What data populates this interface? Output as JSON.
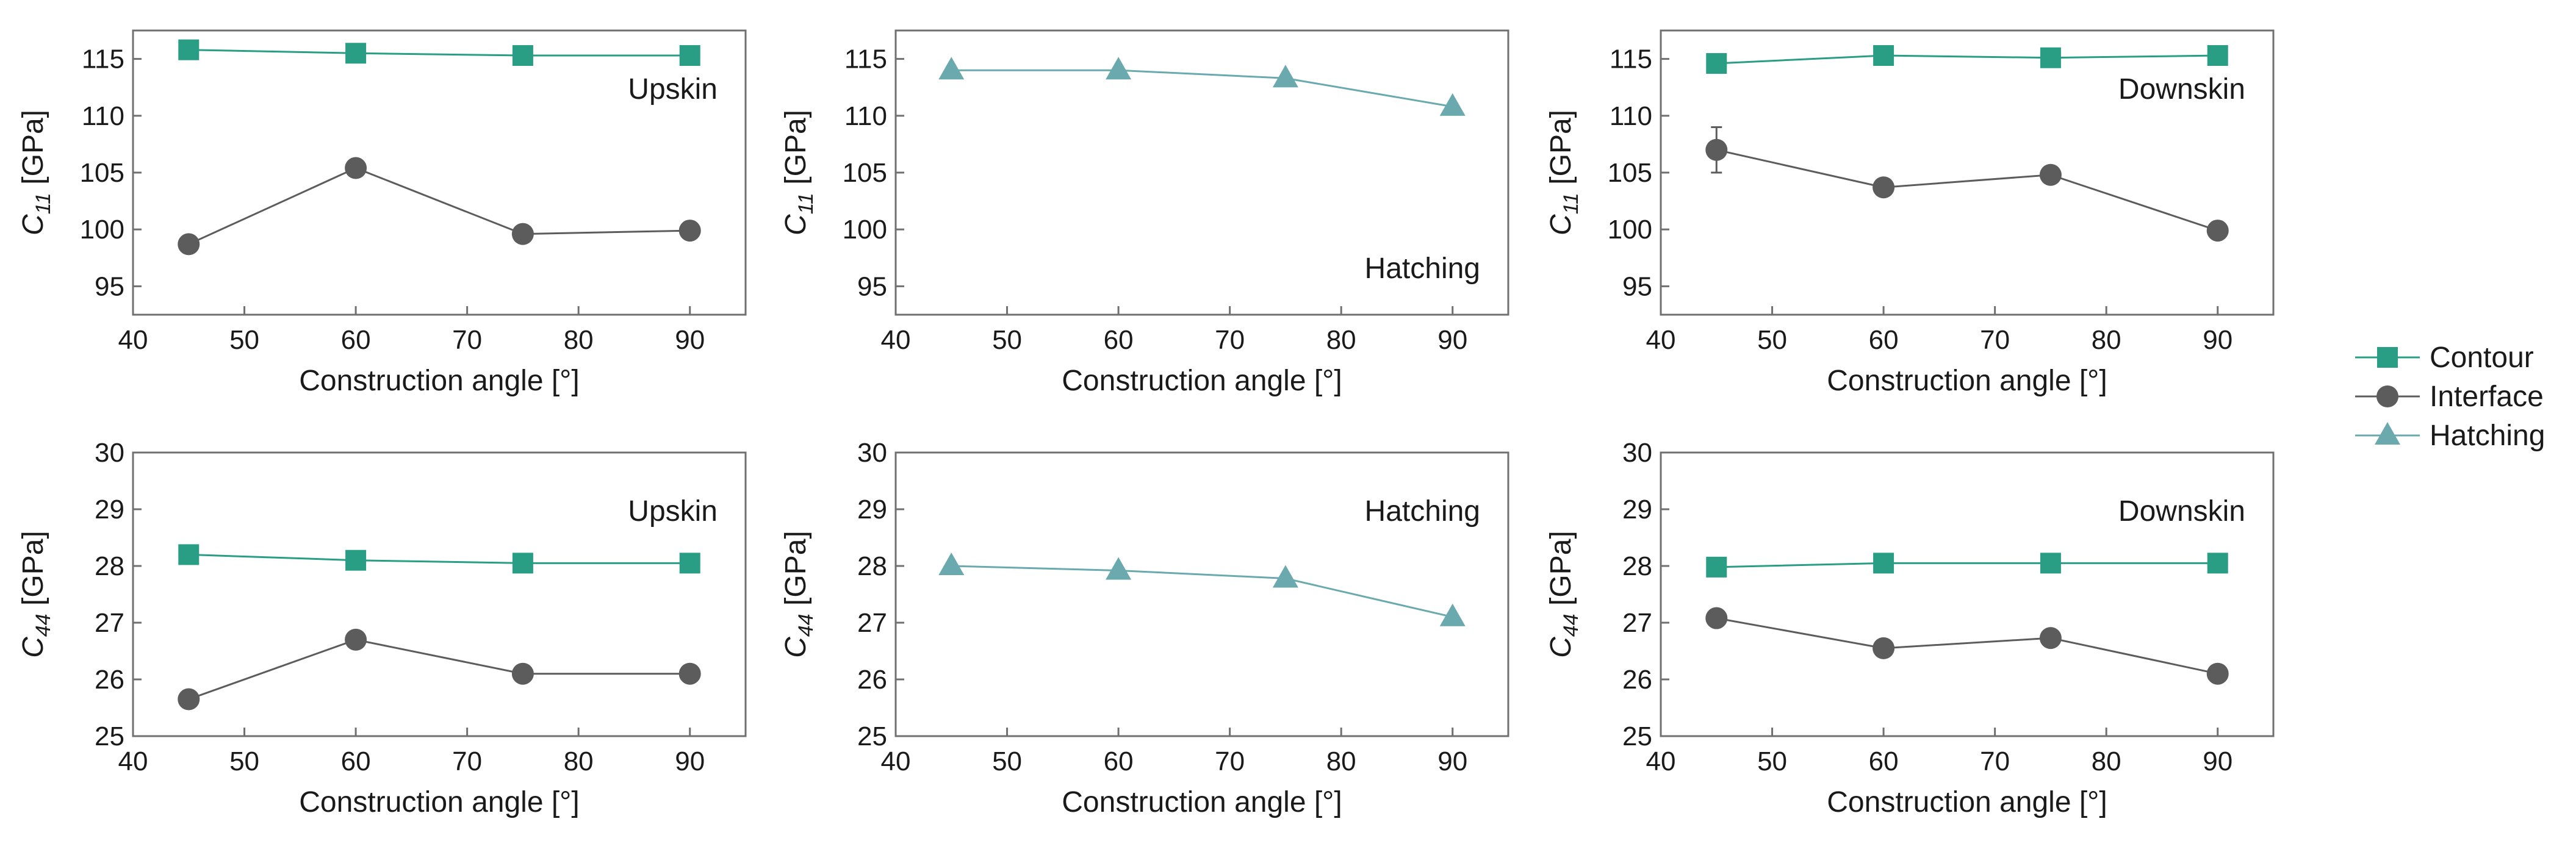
{
  "colors": {
    "contour": "#2a9d85",
    "interface": "#5c5c5c",
    "hatching": "#6aa9ad"
  },
  "legend": {
    "items": [
      {
        "key": "contour",
        "label": "Contour",
        "marker": "square"
      },
      {
        "key": "interface",
        "label": "Interface",
        "marker": "circle"
      },
      {
        "key": "hatching",
        "label": "Hatching",
        "marker": "triangle"
      }
    ]
  },
  "chart_data": [
    {
      "type": "line",
      "panel": "top-left",
      "annotation": "Upskin",
      "annotation_position": "upper-right",
      "xlabel": "Construction angle [°]",
      "ylabel": {
        "base": "C",
        "sub": "11",
        "unit": " [GPa]"
      },
      "xlim": [
        40,
        95
      ],
      "ylim": [
        92.5,
        117.5
      ],
      "xticks": [
        40,
        50,
        60,
        70,
        80,
        90
      ],
      "yticks": [
        95,
        100,
        105,
        110,
        115
      ],
      "x": [
        45,
        60,
        75,
        90
      ],
      "series": [
        {
          "name": "Contour",
          "key": "contour",
          "values": [
            115.8,
            115.5,
            115.3,
            115.3
          ]
        },
        {
          "name": "Interface",
          "key": "interface",
          "values": [
            98.7,
            105.4,
            99.6,
            99.9
          ]
        }
      ]
    },
    {
      "type": "line",
      "panel": "top-middle",
      "annotation": "Hatching",
      "annotation_position": "lower-right",
      "xlabel": "Construction angle [°]",
      "ylabel": {
        "base": "C",
        "sub": "11",
        "unit": " [GPa]"
      },
      "xlim": [
        40,
        95
      ],
      "ylim": [
        92.5,
        117.5
      ],
      "xticks": [
        40,
        50,
        60,
        70,
        80,
        90
      ],
      "yticks": [
        95,
        100,
        105,
        110,
        115
      ],
      "x": [
        45,
        60,
        75,
        90
      ],
      "series": [
        {
          "name": "Hatching",
          "key": "hatching",
          "values": [
            114.0,
            114.0,
            113.3,
            110.8
          ]
        }
      ]
    },
    {
      "type": "line",
      "panel": "top-right",
      "annotation": "Downskin",
      "annotation_position": "upper-right",
      "xlabel": "Construction angle [°]",
      "ylabel": {
        "base": "C",
        "sub": "11",
        "unit": " [GPa]"
      },
      "xlim": [
        40,
        95
      ],
      "ylim": [
        92.5,
        117.5
      ],
      "xticks": [
        40,
        50,
        60,
        70,
        80,
        90
      ],
      "yticks": [
        95,
        100,
        105,
        110,
        115
      ],
      "x": [
        45,
        60,
        75,
        90
      ],
      "series": [
        {
          "name": "Contour",
          "key": "contour",
          "values": [
            114.6,
            115.3,
            115.1,
            115.3
          ]
        },
        {
          "name": "Interface",
          "key": "interface",
          "values": [
            107.0,
            103.7,
            104.8,
            99.9
          ],
          "errors": [
            2.0,
            0,
            0,
            0
          ]
        }
      ]
    },
    {
      "type": "line",
      "panel": "bottom-left",
      "annotation": "Upskin",
      "annotation_position": "upper-right",
      "xlabel": "Construction angle [°]",
      "ylabel": {
        "base": "C",
        "sub": "44",
        "unit": " [GPa]"
      },
      "xlim": [
        40,
        95
      ],
      "ylim": [
        25,
        30
      ],
      "xticks": [
        40,
        50,
        60,
        70,
        80,
        90
      ],
      "yticks": [
        25,
        26,
        27,
        28,
        29,
        30
      ],
      "x": [
        45,
        60,
        75,
        90
      ],
      "series": [
        {
          "name": "Contour",
          "key": "contour",
          "values": [
            28.2,
            28.1,
            28.05,
            28.05
          ]
        },
        {
          "name": "Interface",
          "key": "interface",
          "values": [
            25.65,
            26.7,
            26.1,
            26.1
          ]
        }
      ]
    },
    {
      "type": "line",
      "panel": "bottom-middle",
      "annotation": "Hatching",
      "annotation_position": "upper-right",
      "xlabel": "Construction angle [°]",
      "ylabel": {
        "base": "C",
        "sub": "44",
        "unit": " [GPa]"
      },
      "xlim": [
        40,
        95
      ],
      "ylim": [
        25,
        30
      ],
      "xticks": [
        40,
        50,
        60,
        70,
        80,
        90
      ],
      "yticks": [
        25,
        26,
        27,
        28,
        29,
        30
      ],
      "x": [
        45,
        60,
        75,
        90
      ],
      "series": [
        {
          "name": "Hatching",
          "key": "hatching",
          "values": [
            28.0,
            27.92,
            27.78,
            27.1
          ]
        }
      ]
    },
    {
      "type": "line",
      "panel": "bottom-right",
      "annotation": "Downskin",
      "annotation_position": "upper-right",
      "xlabel": "Construction angle [°]",
      "ylabel": {
        "base": "C",
        "sub": "44",
        "unit": " [GPa]"
      },
      "xlim": [
        40,
        95
      ],
      "ylim": [
        25,
        30
      ],
      "xticks": [
        40,
        50,
        60,
        70,
        80,
        90
      ],
      "yticks": [
        25,
        26,
        27,
        28,
        29,
        30
      ],
      "x": [
        45,
        60,
        75,
        90
      ],
      "series": [
        {
          "name": "Contour",
          "key": "contour",
          "values": [
            27.98,
            28.05,
            28.05,
            28.05
          ]
        },
        {
          "name": "Interface",
          "key": "interface",
          "values": [
            27.08,
            26.55,
            26.73,
            26.1
          ]
        }
      ]
    }
  ]
}
